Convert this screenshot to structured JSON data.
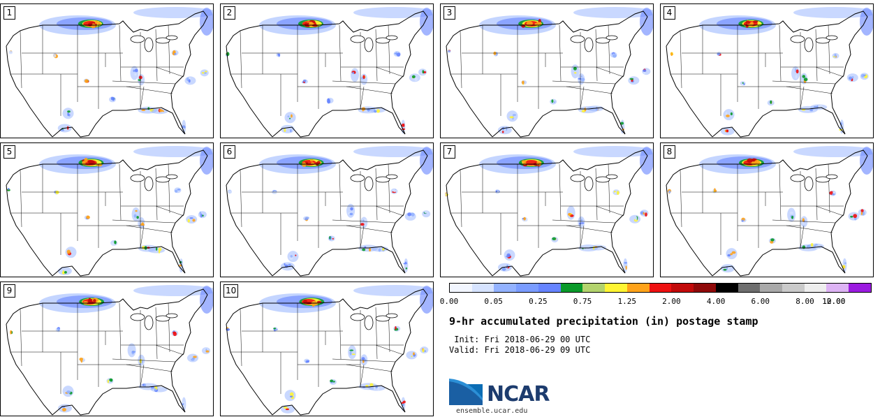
{
  "panels": [
    {
      "label": "1"
    },
    {
      "label": "2"
    },
    {
      "label": "3"
    },
    {
      "label": "4"
    },
    {
      "label": "5"
    },
    {
      "label": "6"
    },
    {
      "label": "7"
    },
    {
      "label": "8"
    },
    {
      "label": "9"
    },
    {
      "label": "10"
    }
  ],
  "colorbar": {
    "colors": [
      "#f2f6ff",
      "#d6e3ff",
      "#93b2ff",
      "#7a9cff",
      "#6684ff",
      "#0a9a2a",
      "#b3d36d",
      "#fff533",
      "#ffa31a",
      "#ee1111",
      "#c20a0a",
      "#8f0909",
      "#000000",
      "#6e6e6e",
      "#a9a9a9",
      "#cacaca",
      "#eeeeee",
      "#ddb3f4",
      "#9b1be0"
    ],
    "tick_labels": [
      "0.00",
      "0.05",
      "0.25",
      "0.75",
      "1.25",
      "2.00",
      "4.00",
      "6.00",
      "8.00",
      "10.00",
      "12.00"
    ]
  },
  "title": "9-hr accumulated precipitation (in) postage stamp",
  "init": " Init: Fri 2018-06-29 00 UTC",
  "valid": "Valid: Fri 2018-06-29 09 UTC",
  "logo_text": "NCAR",
  "url": "ensemble.ucar.edu"
}
